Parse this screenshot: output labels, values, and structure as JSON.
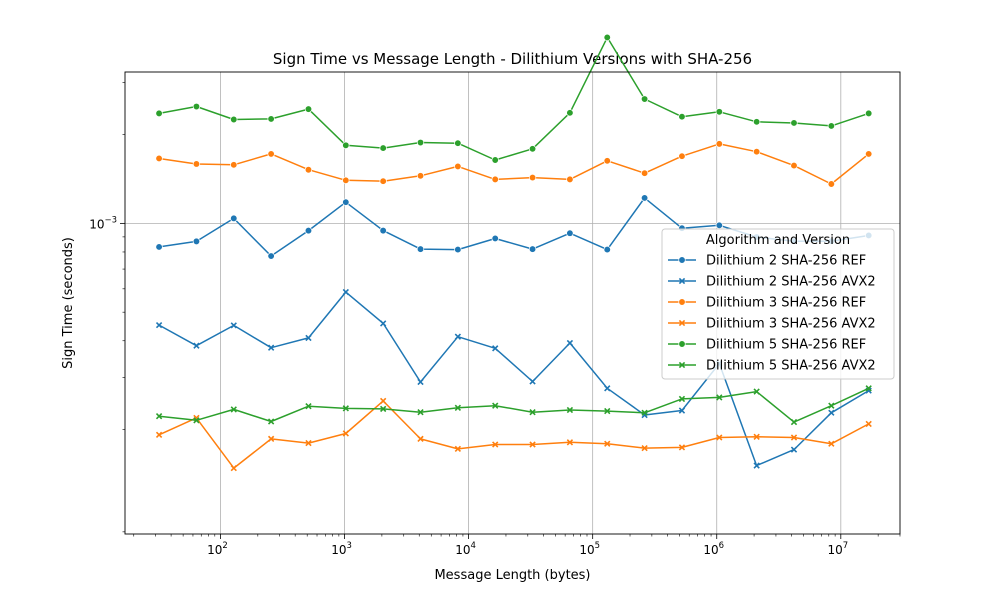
{
  "chart_data": {
    "type": "line",
    "title": "Sign Time vs Message Length - Dilithium Versions with SHA-256",
    "xlabel": "Message Length (bytes)",
    "ylabel": "Sign Time (seconds)",
    "xscale": "log",
    "yscale": "log",
    "xlim": [
      17,
      30000000
    ],
    "ylim": [
      8.85e-05,
      0.00326
    ],
    "x_ticks": [
      {
        "value": 100,
        "base": "10",
        "exp": "2"
      },
      {
        "value": 1000,
        "base": "10",
        "exp": "3"
      },
      {
        "value": 10000,
        "base": "10",
        "exp": "4"
      },
      {
        "value": 100000,
        "base": "10",
        "exp": "5"
      },
      {
        "value": 1000000,
        "base": "10",
        "exp": "6"
      },
      {
        "value": 10000000,
        "base": "10",
        "exp": "7"
      }
    ],
    "y_ticks": [
      {
        "value": 0.001,
        "base": "10",
        "exp": "−3"
      }
    ],
    "grid": true,
    "legend": {
      "title": "Algorithm and Version",
      "placement": "right"
    },
    "x": [
      32,
      64,
      128,
      256,
      512,
      1024,
      2048,
      4096,
      8192,
      16384,
      32768,
      65536,
      131072,
      262144,
      524288,
      1048576,
      2097152,
      4194304,
      8388608,
      16777216
    ],
    "series": [
      {
        "name": "Dilithium 2 SHA-256 REF",
        "color": "#1f77b4",
        "marker": "circle",
        "values": [
          0.000832,
          0.000869,
          0.00104,
          0.000775,
          0.000945,
          0.00118,
          0.000945,
          0.000818,
          0.000815,
          0.000889,
          0.000818,
          0.000926,
          0.000815,
          0.00122,
          0.000963,
          0.000985,
          0.000899,
          0.00087,
          0.00087,
          0.00091
        ]
      },
      {
        "name": "Dilithium 2 SHA-256 AVX2",
        "color": "#1f77b4",
        "marker": "x",
        "values": [
          0.000452,
          0.000385,
          0.000451,
          0.000379,
          0.000409,
          0.000585,
          0.000458,
          0.00029,
          0.000413,
          0.000377,
          0.000291,
          0.000393,
          0.000276,
          0.000224,
          0.000232,
          0.000335,
          0.000151,
          0.000171,
          0.000228,
          0.000271
        ]
      },
      {
        "name": "Dilithium 3 SHA-256 REF",
        "color": "#ff7f0e",
        "marker": "circle",
        "values": [
          0.00166,
          0.00159,
          0.00158,
          0.00172,
          0.00152,
          0.0014,
          0.00139,
          0.00145,
          0.00156,
          0.00141,
          0.00143,
          0.00141,
          0.00163,
          0.00148,
          0.00169,
          0.00186,
          0.00175,
          0.00157,
          0.00136,
          0.00172
        ]
      },
      {
        "name": "Dilithium 3 SHA-256 AVX2",
        "color": "#ff7f0e",
        "marker": "x",
        "values": [
          0.000192,
          0.000219,
          0.000148,
          0.000186,
          0.00018,
          0.000194,
          0.00025,
          0.000186,
          0.000172,
          0.000178,
          0.000178,
          0.000181,
          0.000179,
          0.000173,
          0.000174,
          0.000188,
          0.000189,
          0.000188,
          0.000179,
          0.000209
        ]
      },
      {
        "name": "Dilithium 5 SHA-256 REF",
        "color": "#2ca02c",
        "marker": "circle",
        "values": [
          0.00236,
          0.00249,
          0.00225,
          0.00226,
          0.00244,
          0.00184,
          0.0018,
          0.00188,
          0.00187,
          0.00164,
          0.00179,
          0.00237,
          0.00427,
          0.00264,
          0.0023,
          0.00239,
          0.00221,
          0.00219,
          0.00214,
          0.00236
        ]
      },
      {
        "name": "Dilithium 5 SHA-256 AVX2",
        "color": "#2ca02c",
        "marker": "x",
        "values": [
          0.000222,
          0.000215,
          0.000234,
          0.000213,
          0.00024,
          0.000236,
          0.000235,
          0.000229,
          0.000237,
          0.000241,
          0.000229,
          0.000233,
          0.000231,
          0.000228,
          0.000254,
          0.000257,
          0.000269,
          0.000212,
          0.000241,
          0.000276
        ]
      }
    ]
  }
}
